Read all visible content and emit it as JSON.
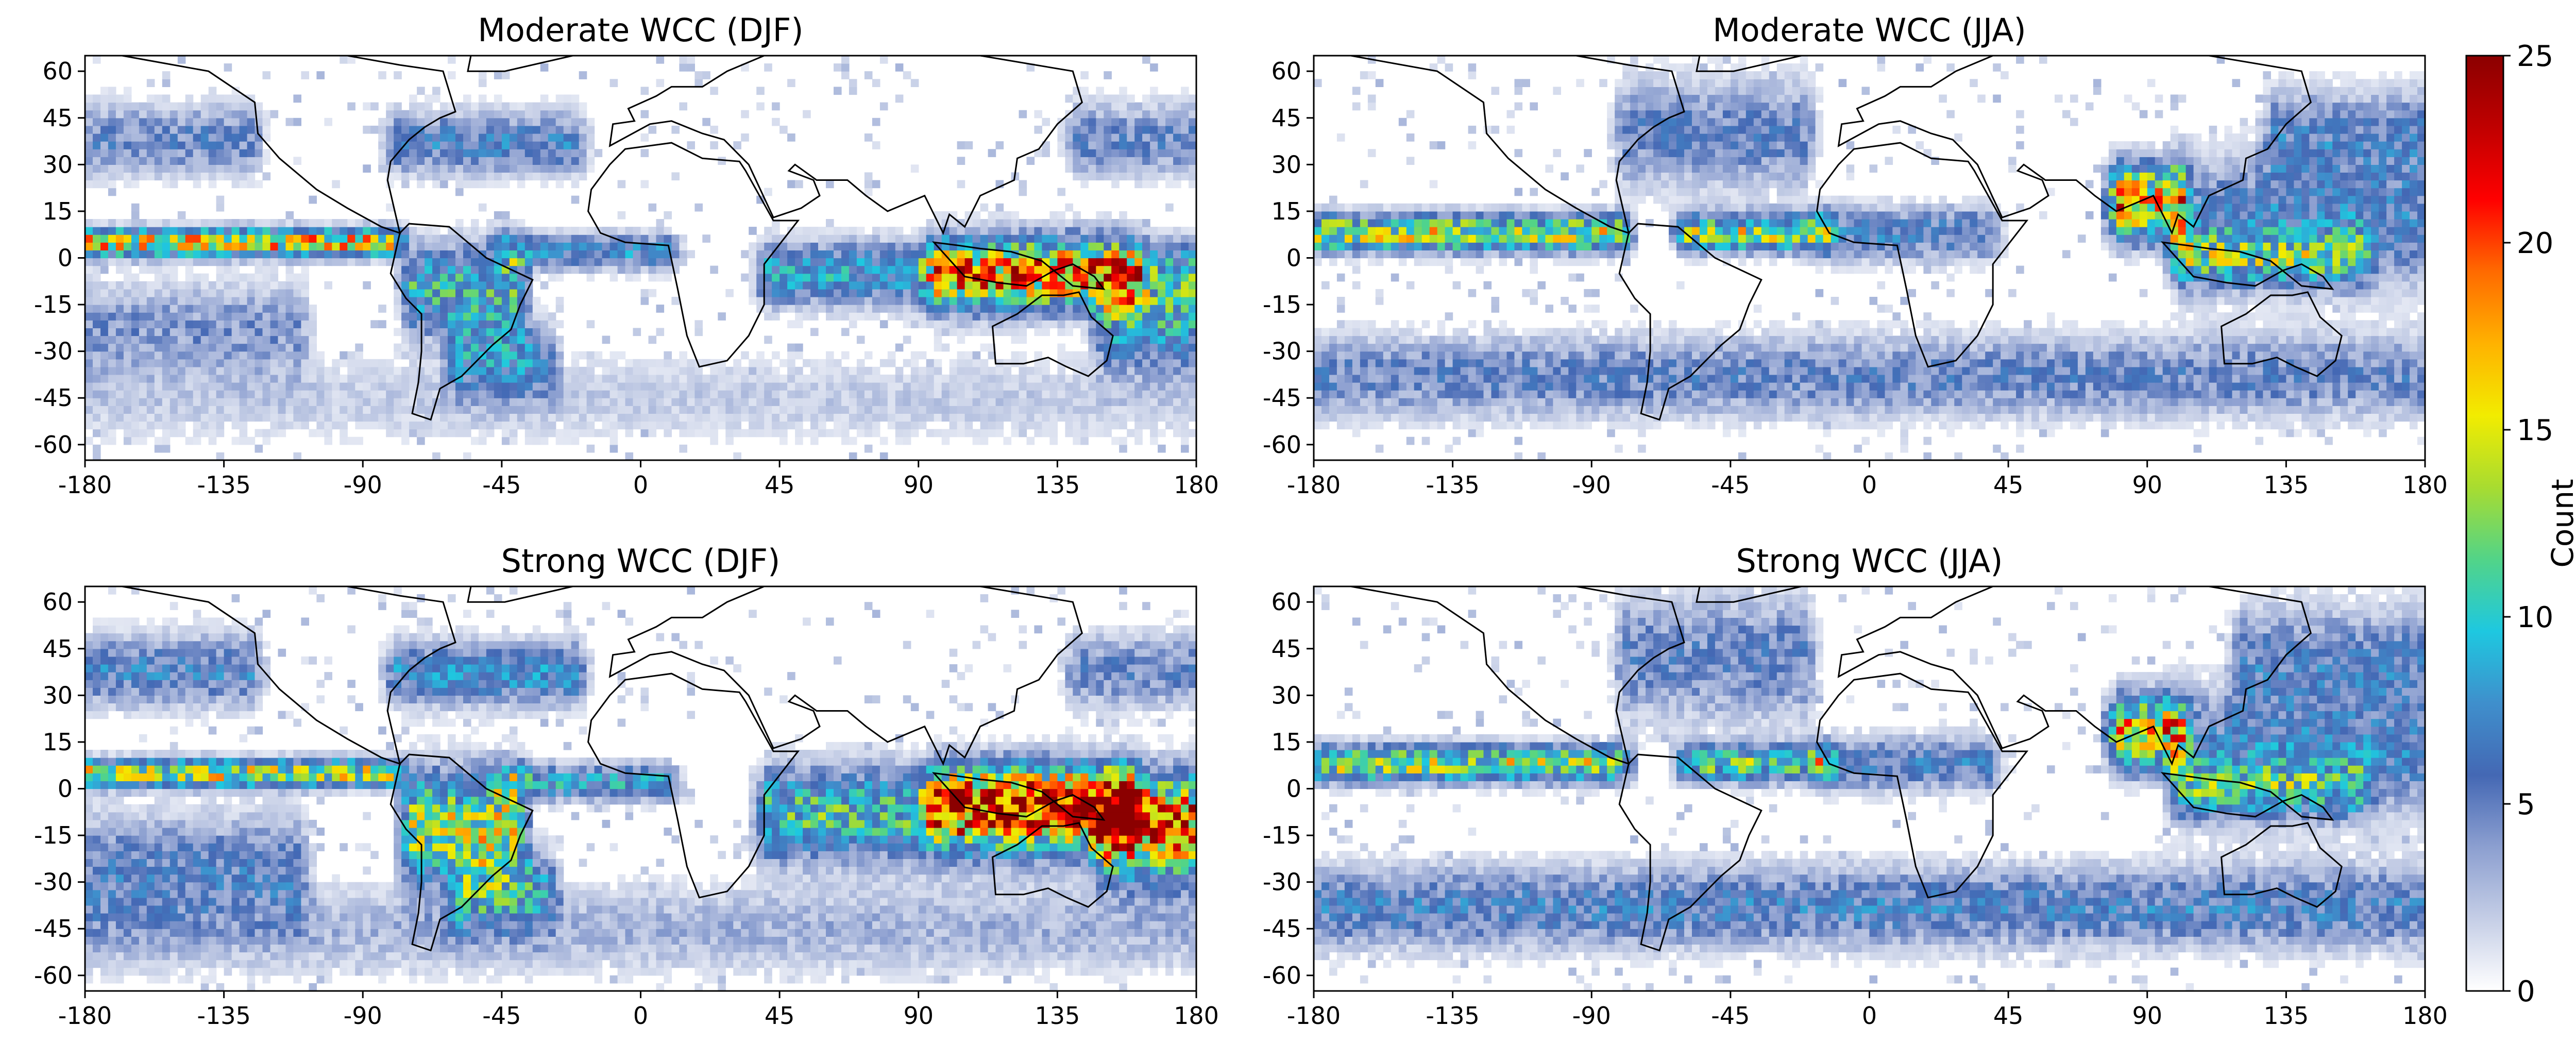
{
  "figure": {
    "colorbar": {
      "label": "Count",
      "ticks": [
        0,
        5,
        10,
        15,
        20,
        25
      ],
      "range": [
        0,
        25
      ],
      "colors": [
        "#ffffff",
        "#c5cee6",
        "#8c9fd0",
        "#4468b4",
        "#3f8fcc",
        "#1ec8e0",
        "#52d488",
        "#a8dc30",
        "#f2ec00",
        "#ffb200",
        "#ff6a00",
        "#ff0000",
        "#c00000",
        "#8b0000"
      ]
    }
  },
  "chart_data": [
    {
      "type": "heatmap",
      "title": "Moderate WCC (DJF)",
      "season": "DJF",
      "xlim": [
        -180,
        180
      ],
      "ylim": [
        -65,
        65
      ],
      "xticks": [
        -180,
        -135,
        -90,
        -45,
        0,
        45,
        90,
        135,
        180
      ],
      "yticks": [
        -60,
        -45,
        -30,
        -15,
        0,
        15,
        30,
        45,
        60
      ],
      "bin_deg": 2.5,
      "bands": [
        {
          "region": "ITCZ",
          "lat": 5,
          "width": 3,
          "lon": [
            -180,
            -80
          ],
          "peak": 16
        },
        {
          "region": "ITCZ Atlantic",
          "lat": 2,
          "width": 4,
          "lon": [
            -45,
            10
          ],
          "peak": 7
        },
        {
          "region": "ITCZ Indian/West Pacific",
          "lat": -5,
          "width": 7,
          "lon": [
            40,
            180
          ],
          "peak": 8
        },
        {
          "region": "Amazon",
          "lat": -10,
          "width": 10,
          "lon": [
            -75,
            -40
          ],
          "peak": 9
        },
        {
          "region": "Maritime Continent",
          "lat": -5,
          "width": 8,
          "lon": [
            95,
            160
          ],
          "peak": 11
        },
        {
          "region": "SPCZ",
          "lat": -20,
          "width": 10,
          "lon": [
            150,
            180
          ],
          "peak": 8
        },
        {
          "region": "North Pacific storm track",
          "lat": 38,
          "width": 8,
          "lon": [
            -180,
            -125
          ],
          "peak": 5
        },
        {
          "region": "North Pacific storm track East",
          "lat": 38,
          "width": 8,
          "lon": [
            140,
            180
          ],
          "peak": 5
        },
        {
          "region": "North Atlantic storm track",
          "lat": 37,
          "width": 7,
          "lon": [
            -80,
            -20
          ],
          "peak": 6
        },
        {
          "region": "South Pacific",
          "lat": -22,
          "width": 10,
          "lon": [
            -180,
            -110
          ],
          "peak": 4
        },
        {
          "region": "South Atlantic",
          "lat": -32,
          "width": 9,
          "lon": [
            -60,
            -30
          ],
          "peak": 6
        },
        {
          "region": "Southern Ocean",
          "lat": -45,
          "width": 10,
          "lon": [
            -180,
            180
          ],
          "peak": 2
        }
      ],
      "max_count": 25
    },
    {
      "type": "heatmap",
      "title": "Moderate WCC (JJA)",
      "season": "JJA",
      "xlim": [
        -180,
        180
      ],
      "ylim": [
        -65,
        65
      ],
      "xticks": [
        -180,
        -135,
        -90,
        -45,
        0,
        45,
        90,
        135,
        180
      ],
      "yticks": [
        -60,
        -45,
        -30,
        -15,
        0,
        15,
        30,
        45,
        60
      ],
      "bin_deg": 2.5,
      "bands": [
        {
          "region": "ITCZ East Pacific",
          "lat": 8,
          "width": 4,
          "lon": [
            -180,
            -80
          ],
          "peak": 14
        },
        {
          "region": "ITCZ Atlantic",
          "lat": 8,
          "width": 4,
          "lon": [
            -60,
            -15
          ],
          "peak": 13
        },
        {
          "region": "West Africa",
          "lat": 8,
          "width": 6,
          "lon": [
            -15,
            40
          ],
          "peak": 6
        },
        {
          "region": "Bay of Bengal",
          "lat": 18,
          "width": 8,
          "lon": [
            80,
            100
          ],
          "peak": 18
        },
        {
          "region": "West Pacific",
          "lat": 12,
          "width": 14,
          "lon": [
            100,
            180
          ],
          "peak": 6
        },
        {
          "region": "Maritime Continent",
          "lat": 0,
          "width": 6,
          "lon": [
            100,
            160
          ],
          "peak": 8
        },
        {
          "region": "North Pacific",
          "lat": 40,
          "width": 10,
          "lon": [
            130,
            180
          ],
          "peak": 5
        },
        {
          "region": "North Atlantic",
          "lat": 40,
          "width": 12,
          "lon": [
            -80,
            -20
          ],
          "peak": 5
        },
        {
          "region": "Southern mid-latitudes",
          "lat": -38,
          "width": 9,
          "lon": [
            -180,
            180
          ],
          "peak": 5
        }
      ],
      "max_count": 25
    },
    {
      "type": "heatmap",
      "title": "Strong WCC (DJF)",
      "season": "DJF",
      "xlim": [
        -180,
        180
      ],
      "ylim": [
        -65,
        65
      ],
      "xticks": [
        -180,
        -135,
        -90,
        -45,
        0,
        45,
        90,
        135,
        180
      ],
      "yticks": [
        -60,
        -45,
        -30,
        -15,
        0,
        15,
        30,
        45,
        60
      ],
      "bin_deg": 2.5,
      "bands": [
        {
          "region": "ITCZ",
          "lat": 5,
          "width": 3,
          "lon": [
            -180,
            -80
          ],
          "peak": 14
        },
        {
          "region": "ITCZ Atlantic",
          "lat": 2,
          "width": 4,
          "lon": [
            -45,
            10
          ],
          "peak": 8
        },
        {
          "region": "Indian/West Pacific",
          "lat": -8,
          "width": 10,
          "lon": [
            40,
            180
          ],
          "peak": 10
        },
        {
          "region": "Amazon",
          "lat": -12,
          "width": 12,
          "lon": [
            -75,
            -40
          ],
          "peak": 13
        },
        {
          "region": "Maritime Continent",
          "lat": -5,
          "width": 8,
          "lon": [
            95,
            160
          ],
          "peak": 15
        },
        {
          "region": "SPCZ",
          "lat": -15,
          "width": 10,
          "lon": [
            150,
            180
          ],
          "peak": 12
        },
        {
          "region": "North Pacific storm track",
          "lat": 38,
          "width": 8,
          "lon": [
            -180,
            -125
          ],
          "peak": 6
        },
        {
          "region": "North Pacific storm track East",
          "lat": 38,
          "width": 8,
          "lon": [
            140,
            180
          ],
          "peak": 5
        },
        {
          "region": "North Atlantic storm track",
          "lat": 37,
          "width": 7,
          "lon": [
            -80,
            -20
          ],
          "peak": 7
        },
        {
          "region": "South Pacific",
          "lat": -25,
          "width": 12,
          "lon": [
            -180,
            -110
          ],
          "peak": 5
        },
        {
          "region": "South Atlantic",
          "lat": -32,
          "width": 9,
          "lon": [
            -60,
            -30
          ],
          "peak": 7
        },
        {
          "region": "Southern Ocean",
          "lat": -45,
          "width": 10,
          "lon": [
            -180,
            180
          ],
          "peak": 3
        }
      ],
      "max_count": 25
    },
    {
      "type": "heatmap",
      "title": "Strong WCC (JJA)",
      "season": "JJA",
      "xlim": [
        -180,
        180
      ],
      "ylim": [
        -65,
        65
      ],
      "xticks": [
        -180,
        -135,
        -90,
        -45,
        0,
        45,
        90,
        135,
        180
      ],
      "yticks": [
        -60,
        -45,
        -30,
        -15,
        0,
        15,
        30,
        45,
        60
      ],
      "bin_deg": 2.5,
      "bands": [
        {
          "region": "ITCZ East Pacific",
          "lat": 8,
          "width": 4,
          "lon": [
            -180,
            -80
          ],
          "peak": 13
        },
        {
          "region": "ITCZ Atlantic",
          "lat": 8,
          "width": 4,
          "lon": [
            -60,
            -15
          ],
          "peak": 11
        },
        {
          "region": "West Africa",
          "lat": 8,
          "width": 6,
          "lon": [
            -15,
            40
          ],
          "peak": 6
        },
        {
          "region": "Bay of Bengal",
          "lat": 18,
          "width": 8,
          "lon": [
            80,
            100
          ],
          "peak": 16
        },
        {
          "region": "West Pacific",
          "lat": 12,
          "width": 14,
          "lon": [
            100,
            180
          ],
          "peak": 6
        },
        {
          "region": "Maritime Continent",
          "lat": 0,
          "width": 6,
          "lon": [
            100,
            160
          ],
          "peak": 7
        },
        {
          "region": "North Pacific",
          "lat": 42,
          "width": 12,
          "lon": [
            120,
            180
          ],
          "peak": 5
        },
        {
          "region": "North Atlantic",
          "lat": 42,
          "width": 14,
          "lon": [
            -80,
            -20
          ],
          "peak": 5
        },
        {
          "region": "Southern mid-latitudes",
          "lat": -38,
          "width": 9,
          "lon": [
            -180,
            180
          ],
          "peak": 6
        }
      ],
      "max_count": 25
    }
  ]
}
